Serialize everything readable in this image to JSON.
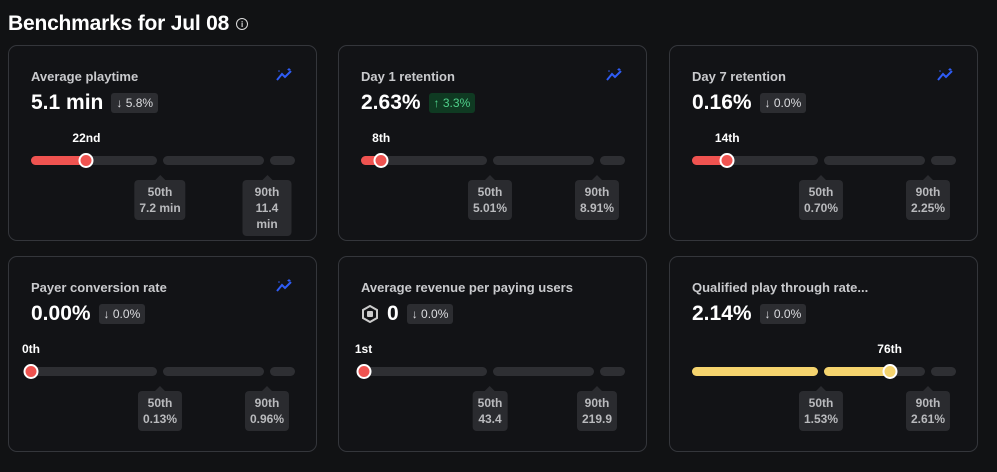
{
  "header": {
    "title": "Benchmarks for Jul 08"
  },
  "colors": {
    "low": "#ef5350",
    "high": "#f5d46e",
    "trend_icon": "#2f5cf5"
  },
  "cards": [
    {
      "title": "Average playtime",
      "value": "5.1 min",
      "change": "↓ 5.8%",
      "change_dir": "down",
      "percentile": 22,
      "percentile_label": "22nd",
      "p50_label": "50th",
      "p50": "7.2 min",
      "p90_label": "90th",
      "p90": "11.4 min",
      "trend_icon": true,
      "currency_icon": false
    },
    {
      "title": "Day 1 retention",
      "value": "2.63%",
      "change": "↑ 3.3%",
      "change_dir": "up",
      "percentile": 8,
      "percentile_label": "8th",
      "p50_label": "50th",
      "p50": "5.01%",
      "p90_label": "90th",
      "p90": "8.91%",
      "trend_icon": true,
      "currency_icon": false
    },
    {
      "title": "Day 7 retention",
      "value": "0.16%",
      "change": "↓ 0.0%",
      "change_dir": "down",
      "percentile": 14,
      "percentile_label": "14th",
      "p50_label": "50th",
      "p50": "0.70%",
      "p90_label": "90th",
      "p90": "2.25%",
      "trend_icon": true,
      "currency_icon": false
    },
    {
      "title": "Payer conversion rate",
      "value": "0.00%",
      "change": "↓ 0.0%",
      "change_dir": "down",
      "percentile": 0,
      "percentile_label": "0th",
      "p50_label": "50th",
      "p50": "0.13%",
      "p90_label": "90th",
      "p90": "0.96%",
      "trend_icon": true,
      "currency_icon": false
    },
    {
      "title": "Average revenue per paying users",
      "value": "0",
      "change": "↓ 0.0%",
      "change_dir": "down",
      "percentile": 1,
      "percentile_label": "1st",
      "p50_label": "50th",
      "p50": "43.4",
      "p90_label": "90th",
      "p90": "219.9",
      "trend_icon": false,
      "currency_icon": true
    },
    {
      "title": "Qualified play through rate...",
      "value": "2.14%",
      "change": "↓ 0.0%",
      "change_dir": "down",
      "percentile": 76,
      "percentile_label": "76th",
      "p50_label": "50th",
      "p50": "1.53%",
      "p90_label": "90th",
      "p90": "2.61%",
      "trend_icon": false,
      "currency_icon": false
    }
  ]
}
